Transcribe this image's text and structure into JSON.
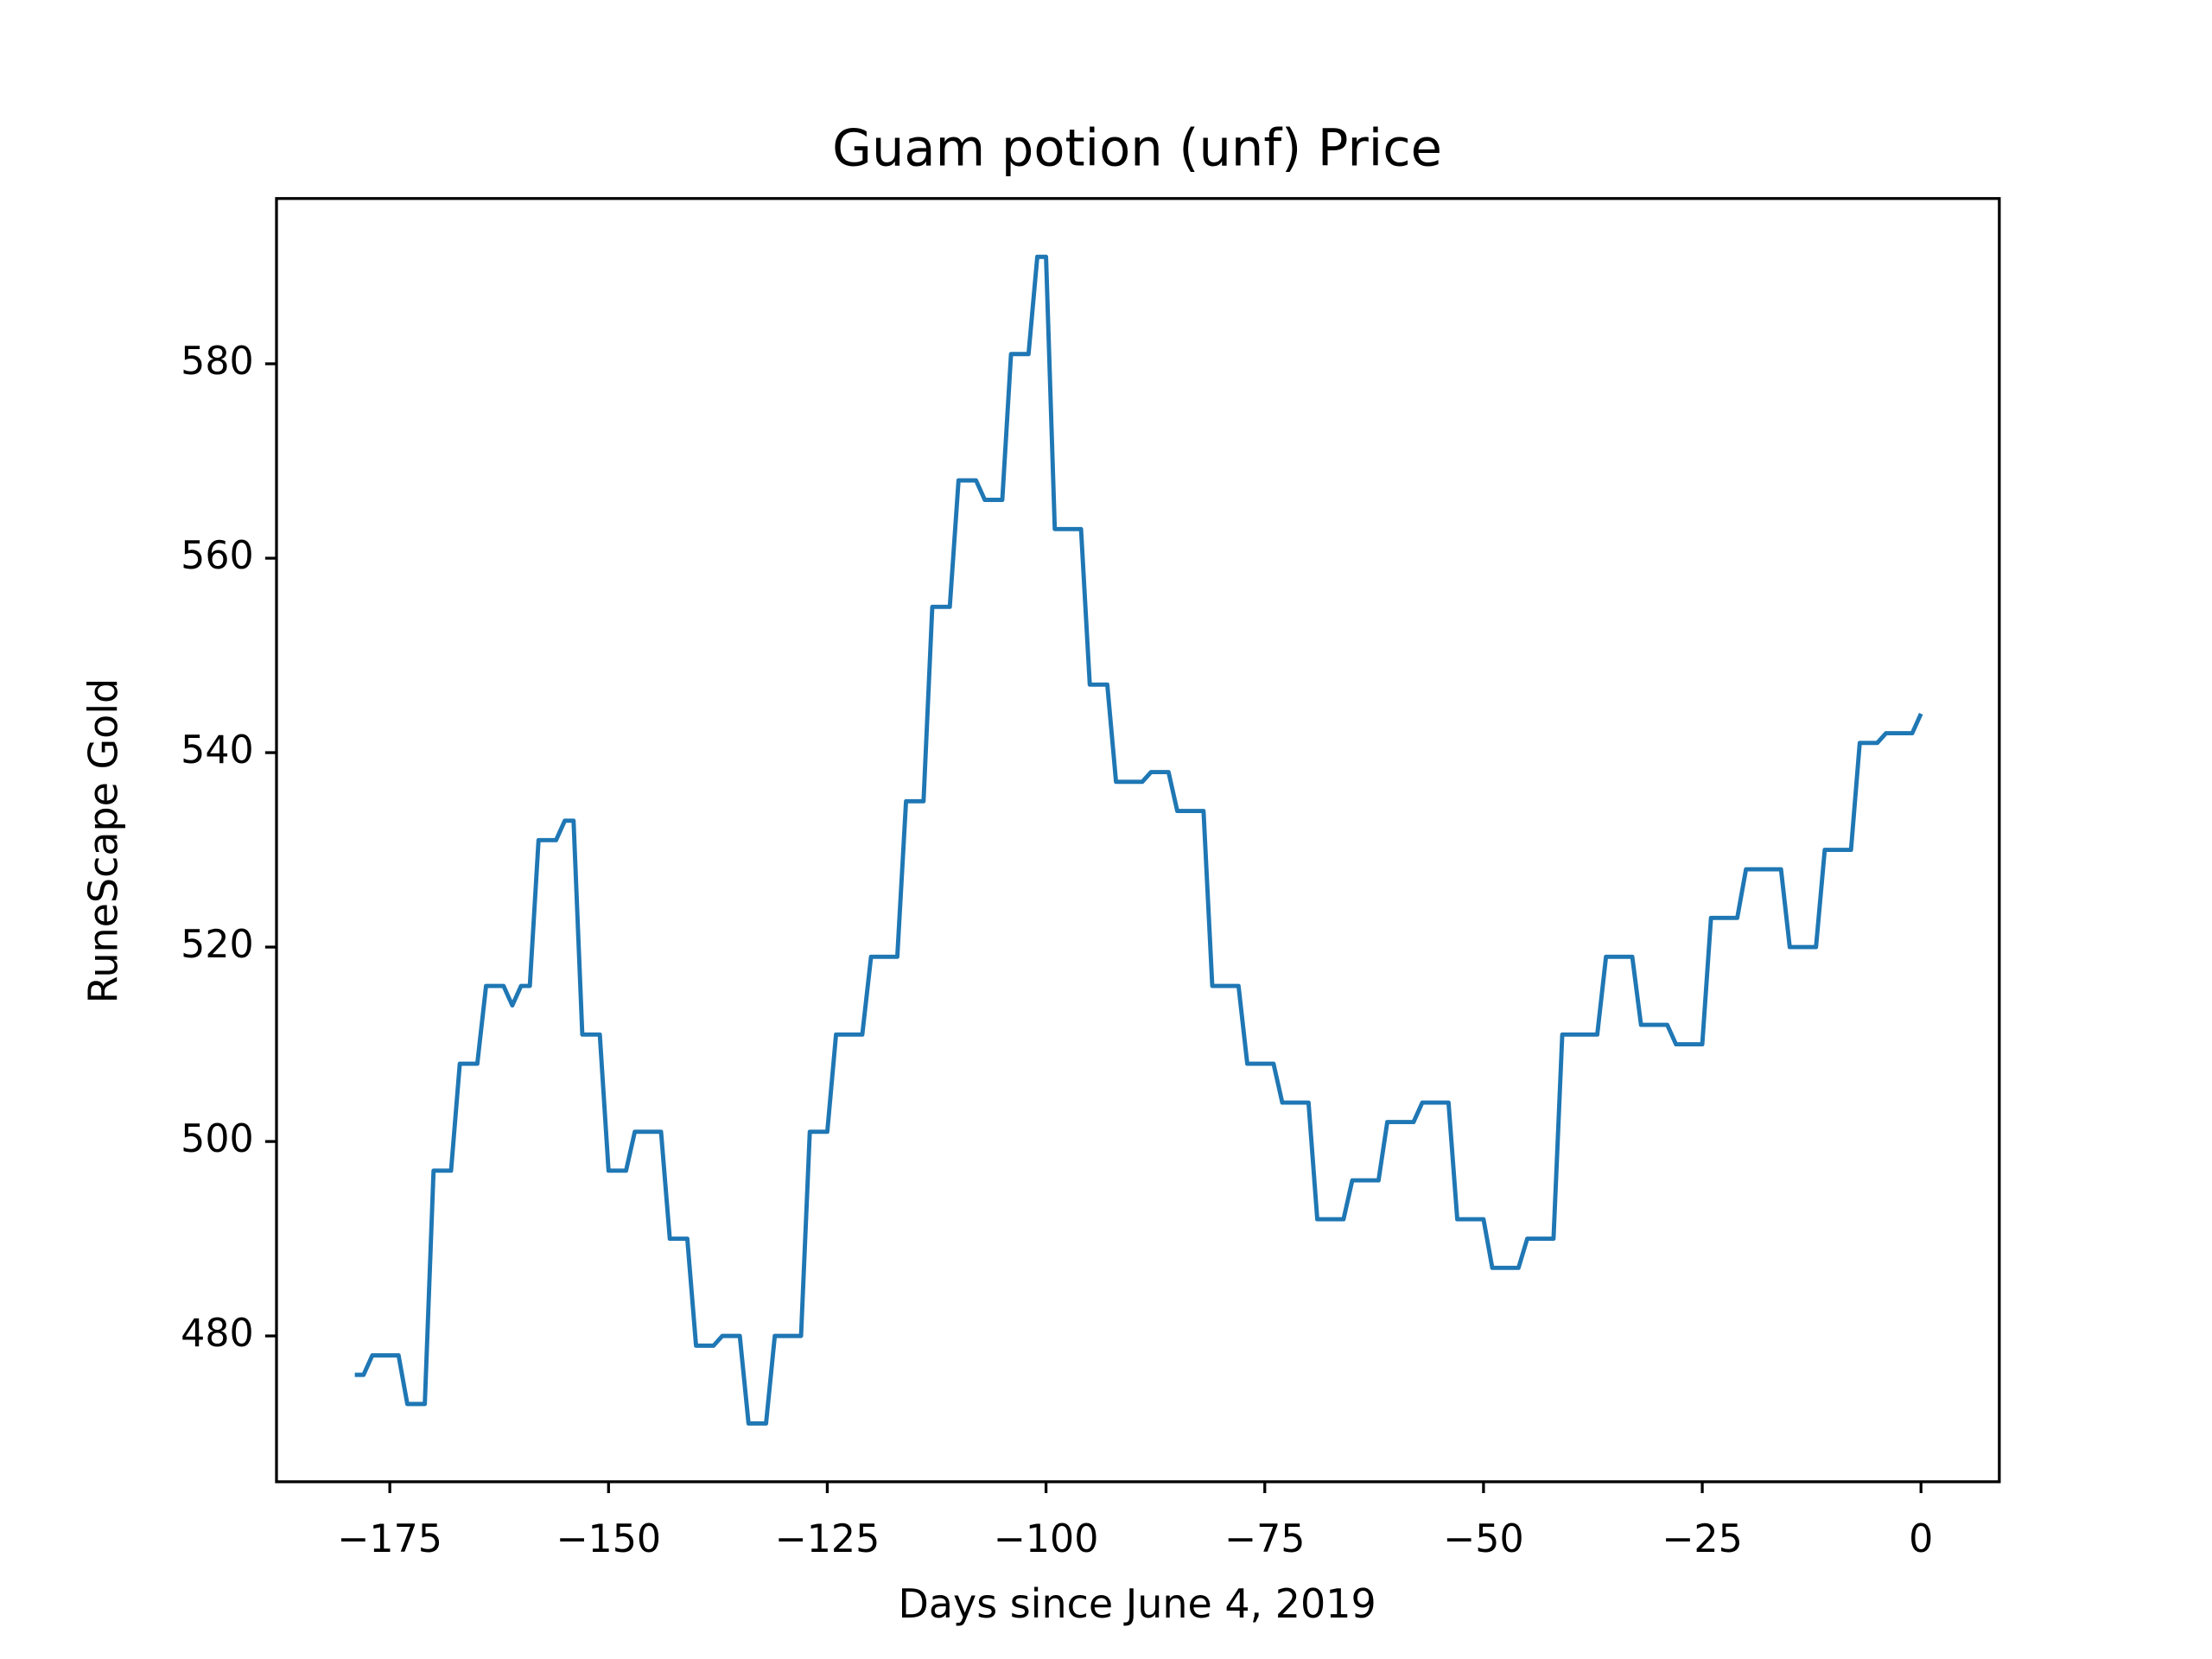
{
  "chart_data": {
    "type": "line",
    "title": "Guam potion (unf) Price",
    "x_label": "Days since June 4, 2019",
    "y_label": "RuneScape Gold",
    "x": [
      -179,
      -178,
      -177,
      -176,
      -175,
      -174,
      -173,
      -172,
      -171,
      -170,
      -169,
      -168,
      -167,
      -166,
      -165,
      -164,
      -163,
      -162,
      -161,
      -160,
      -159,
      -158,
      -157,
      -156,
      -155,
      -154,
      -153,
      -152,
      -151,
      -150,
      -149,
      -148,
      -147,
      -146,
      -145,
      -144,
      -143,
      -142,
      -141,
      -140,
      -139,
      -138,
      -137,
      -136,
      -135,
      -134,
      -133,
      -132,
      -131,
      -130,
      -129,
      -128,
      -127,
      -126,
      -125,
      -124,
      -123,
      -122,
      -121,
      -120,
      -119,
      -118,
      -117,
      -116,
      -115,
      -114,
      -113,
      -112,
      -111,
      -110,
      -109,
      -108,
      -107,
      -106,
      -105,
      -104,
      -103,
      -102,
      -101,
      -100,
      -99,
      -98,
      -97,
      -96,
      -95,
      -94,
      -93,
      -92,
      -91,
      -90,
      -89,
      -88,
      -87,
      -86,
      -85,
      -84,
      -83,
      -82,
      -81,
      -80,
      -79,
      -78,
      -77,
      -76,
      -75,
      -74,
      -73,
      -72,
      -71,
      -70,
      -69,
      -68,
      -67,
      -66,
      -65,
      -64,
      -63,
      -62,
      -61,
      -60,
      -59,
      -58,
      -57,
      -56,
      -55,
      -54,
      -53,
      -52,
      -51,
      -50,
      -49,
      -48,
      -47,
      -46,
      -45,
      -44,
      -43,
      -42,
      -41,
      -40,
      -39,
      -38,
      -37,
      -36,
      -35,
      -34,
      -33,
      -32,
      -31,
      -30,
      -29,
      -28,
      -27,
      -26,
      -25,
      -24,
      -23,
      -22,
      -21,
      -20,
      -19,
      -18,
      -17,
      -16,
      -15,
      -14,
      -13,
      -12,
      -11,
      -10,
      -9,
      -8,
      -7,
      -6,
      -5,
      -4,
      -3,
      -2,
      -1,
      0
    ],
    "series": [
      {
        "name": "Guam potion (unf)",
        "color": "#1f77b4",
        "values": [
          476,
          476,
          478,
          478,
          478,
          478,
          473,
          473,
          473,
          497,
          497,
          497,
          508,
          508,
          508,
          516,
          516,
          516,
          514,
          516,
          516,
          531,
          531,
          531,
          533,
          533,
          511,
          511,
          511,
          497,
          497,
          497,
          501,
          501,
          501,
          501,
          490,
          490,
          490,
          479,
          479,
          479,
          480,
          480,
          480,
          471,
          471,
          471,
          480,
          480,
          480,
          480,
          501,
          501,
          501,
          511,
          511,
          511,
          511,
          519,
          519,
          519,
          519,
          535,
          535,
          535,
          555,
          555,
          555,
          568,
          568,
          568,
          566,
          566,
          566,
          581,
          581,
          581,
          591,
          591,
          563,
          563,
          563,
          563,
          547,
          547,
          547,
          537,
          537,
          537,
          537,
          538,
          538,
          538,
          534,
          534,
          534,
          534,
          516,
          516,
          516,
          516,
          508,
          508,
          508,
          508,
          504,
          504,
          504,
          504,
          492,
          492,
          492,
          492,
          496,
          496,
          496,
          496,
          502,
          502,
          502,
          502,
          504,
          504,
          504,
          504,
          492,
          492,
          492,
          492,
          487,
          487,
          487,
          487,
          490,
          490,
          490,
          490,
          511,
          511,
          511,
          511,
          511,
          519,
          519,
          519,
          519,
          512,
          512,
          512,
          512,
          510,
          510,
          510,
          510,
          523,
          523,
          523,
          523,
          528,
          528,
          528,
          528,
          528,
          520,
          520,
          520,
          520,
          530,
          530,
          530,
          530,
          541,
          541,
          541,
          542,
          542,
          542,
          542,
          544
        ]
      }
    ],
    "xlim": [
      -187.95,
      8.95
    ],
    "xticks": [
      {
        "value": -175,
        "label": "−175"
      },
      {
        "value": -150,
        "label": "−150"
      },
      {
        "value": -125,
        "label": "−125"
      },
      {
        "value": -100,
        "label": "−100"
      },
      {
        "value": -75,
        "label": "−75"
      },
      {
        "value": -50,
        "label": "−50"
      },
      {
        "value": -25,
        "label": "−25"
      },
      0
    ],
    "ylim": [
      465,
      597
    ],
    "yticks": [
      480,
      500,
      520,
      540,
      560,
      580
    ]
  }
}
